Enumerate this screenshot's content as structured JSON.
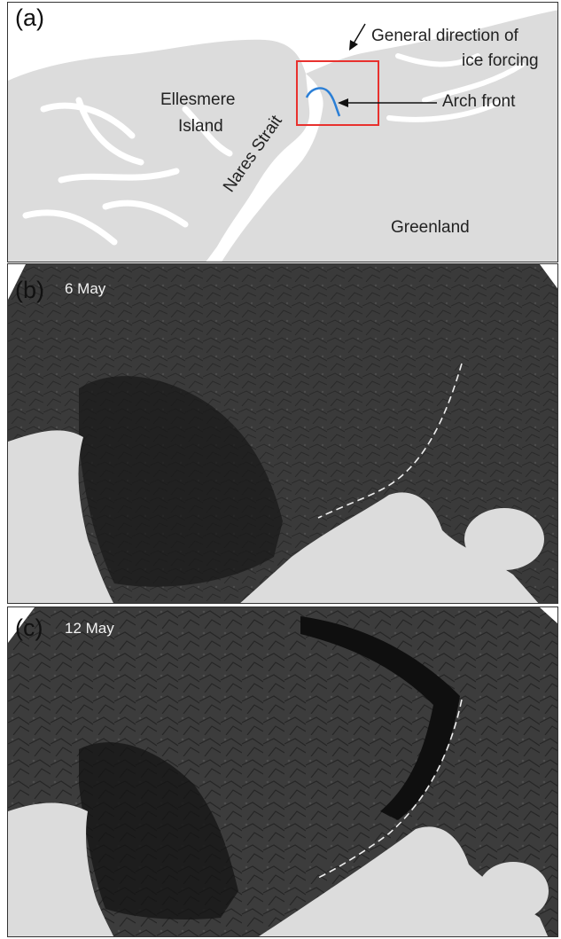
{
  "panels": {
    "a": {
      "label": "(a)",
      "places": {
        "ellesmere_line1": "Ellesmere",
        "ellesmere_line2": "Island",
        "greenland": "Greenland",
        "nares_strait": "Nares Strait"
      },
      "annotations": {
        "direction_line1": "General direction of",
        "direction_line2": "ice forcing",
        "arch_front": "Arch front"
      },
      "colors": {
        "land": "#dcdcdc",
        "water": "#ffffff",
        "box": "#e8312e",
        "arch": "#2b7fd6"
      }
    },
    "b": {
      "label": "(b)",
      "date": "6 May"
    },
    "c": {
      "label": "(c)",
      "date": "12 May"
    }
  },
  "colors": {
    "ice": "#3a3a3a",
    "dark_water": "#111111",
    "land": "#dcdcdc",
    "front_line": "#eeeeee"
  }
}
